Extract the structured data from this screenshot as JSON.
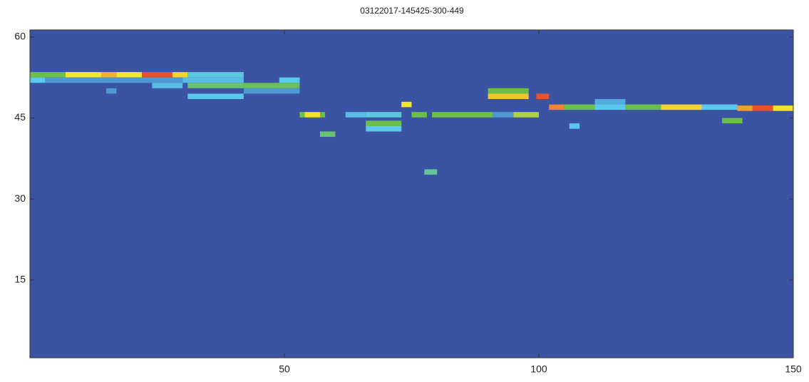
{
  "chart_data": {
    "type": "heatmap",
    "title": "03122017-145425-300-449",
    "xlim": [
      0,
      150
    ],
    "ylim": [
      0.6,
      61.3
    ],
    "xticks": [
      50,
      100,
      150
    ],
    "yticks": [
      15,
      30,
      45,
      60
    ],
    "zlim": [
      0,
      1
    ],
    "colormap": [
      "#3a53a3",
      "#5bc8ee",
      "#6cc04a",
      "#f2e62e",
      "#f0a030",
      "#e33a2e"
    ],
    "cells": [
      [
        0,
        7,
        53,
        0.4
      ],
      [
        7,
        14,
        53,
        0.6
      ],
      [
        14,
        17,
        53,
        0.75
      ],
      [
        17,
        22,
        53,
        0.6
      ],
      [
        22,
        28,
        53,
        0.95
      ],
      [
        28,
        31,
        53,
        0.65
      ],
      [
        31,
        42,
        53,
        0.22
      ],
      [
        0,
        3,
        52,
        0.2
      ],
      [
        3,
        30,
        52,
        0.12
      ],
      [
        30,
        42,
        52,
        0.18
      ],
      [
        49,
        53,
        52,
        0.2
      ],
      [
        24,
        30,
        51,
        0.18
      ],
      [
        31,
        42,
        51,
        0.35
      ],
      [
        42,
        53,
        51,
        0.38
      ],
      [
        15,
        17,
        50,
        0.12
      ],
      [
        42,
        53,
        50,
        0.12
      ],
      [
        31,
        42,
        49,
        0.2
      ],
      [
        53,
        54,
        45.6,
        0.4
      ],
      [
        54,
        57,
        45.6,
        0.62
      ],
      [
        57,
        58,
        45.6,
        0.4
      ],
      [
        62,
        66,
        45.6,
        0.18
      ],
      [
        66,
        73,
        45.6,
        0.22
      ],
      [
        75,
        78,
        45.6,
        0.4
      ],
      [
        79,
        91,
        45.6,
        0.4
      ],
      [
        91,
        95,
        45.6,
        0.12
      ],
      [
        95,
        100,
        45.6,
        0.5
      ],
      [
        73,
        75,
        47.5,
        0.6
      ],
      [
        66,
        73,
        44,
        0.4
      ],
      [
        66,
        73,
        43,
        0.2
      ],
      [
        57,
        60,
        42,
        0.35
      ],
      [
        77.5,
        80,
        35,
        0.3
      ],
      [
        90,
        98,
        50,
        0.4
      ],
      [
        90,
        98,
        49,
        0.7
      ],
      [
        99.5,
        102,
        49,
        0.95
      ],
      [
        102,
        105,
        47,
        0.85
      ],
      [
        105,
        111,
        47,
        0.4
      ],
      [
        111,
        117,
        47,
        0.2
      ],
      [
        117,
        124,
        47,
        0.4
      ],
      [
        124,
        132,
        47,
        0.65
      ],
      [
        132,
        139,
        47,
        0.2
      ],
      [
        111,
        117,
        48,
        0.15
      ],
      [
        139,
        142,
        46.8,
        0.8
      ],
      [
        142,
        146,
        46.8,
        0.95
      ],
      [
        146,
        150,
        46.8,
        0.62
      ],
      [
        136,
        140,
        44.5,
        0.4
      ],
      [
        106,
        108,
        43.5,
        0.2
      ]
    ]
  }
}
